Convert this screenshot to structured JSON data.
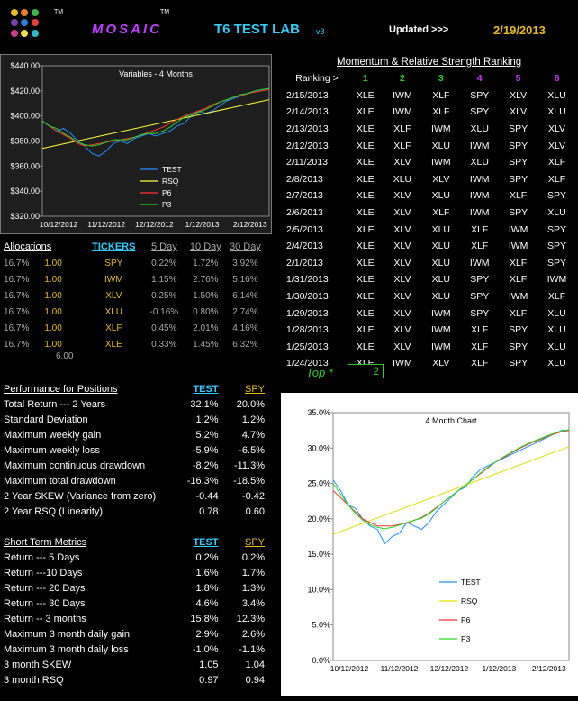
{
  "header": {
    "tm1": "TM",
    "brand": "MOSAIC",
    "tm2": "TM",
    "title": "T6 TEST LAB",
    "version": "v3",
    "updated_label": "Updated >>>",
    "updated_date": "2/19/2013",
    "logo_dots": [
      "#e8b923",
      "#e87f23",
      "#3fb44a",
      "#7a3fb4",
      "#2a7fd4",
      "#e83b3b",
      "#d43a8c",
      "#f0e040",
      "#2bb8c4"
    ]
  },
  "colors": {
    "green": "#2ecc2e",
    "gold": "#e8b923",
    "blue": "#1e90ff",
    "test": "#1e90ff",
    "rsq": "#ffff33",
    "p6": "#ff3030",
    "p3": "#22dd22"
  },
  "ranking": {
    "title": "Momentum & Relative Strength Ranking",
    "label": "Ranking >",
    "cols": [
      "1",
      "2",
      "3",
      "4",
      "5",
      "6"
    ],
    "rows": [
      {
        "date": "2/15/2013",
        "r": [
          "XLE",
          "IWM",
          "XLF",
          "SPY",
          "XLV",
          "XLU"
        ]
      },
      {
        "date": "2/14/2013",
        "r": [
          "XLE",
          "IWM",
          "XLF",
          "SPY",
          "XLV",
          "XLU"
        ]
      },
      {
        "date": "2/13/2013",
        "r": [
          "XLE",
          "XLF",
          "IWM",
          "XLU",
          "SPY",
          "XLV"
        ]
      },
      {
        "date": "2/12/2013",
        "r": [
          "XLE",
          "XLF",
          "XLU",
          "IWM",
          "SPY",
          "XLV"
        ]
      },
      {
        "date": "2/11/2013",
        "r": [
          "XLE",
          "XLV",
          "IWM",
          "XLU",
          "SPY",
          "XLF"
        ]
      },
      {
        "date": "2/8/2013",
        "r": [
          "XLE",
          "XLU",
          "XLV",
          "IWM",
          "SPY",
          "XLF"
        ]
      },
      {
        "date": "2/7/2013",
        "r": [
          "XLE",
          "XLV",
          "XLU",
          "IWM",
          "XLF",
          "SPY"
        ]
      },
      {
        "date": "2/6/2013",
        "r": [
          "XLE",
          "XLV",
          "XLF",
          "IWM",
          "SPY",
          "XLU"
        ]
      },
      {
        "date": "2/5/2013",
        "r": [
          "XLE",
          "XLV",
          "XLU",
          "XLF",
          "IWM",
          "SPY"
        ]
      },
      {
        "date": "2/4/2013",
        "r": [
          "XLE",
          "XLV",
          "XLU",
          "XLF",
          "IWM",
          "SPY"
        ]
      },
      {
        "date": "2/1/2013",
        "r": [
          "XLE",
          "XLV",
          "XLU",
          "IWM",
          "XLF",
          "SPY"
        ]
      },
      {
        "date": "1/31/2013",
        "r": [
          "XLE",
          "XLV",
          "XLU",
          "SPY",
          "XLF",
          "IWM"
        ]
      },
      {
        "date": "1/30/2013",
        "r": [
          "XLE",
          "XLV",
          "XLU",
          "SPY",
          "IWM",
          "XLF"
        ]
      },
      {
        "date": "1/29/2013",
        "r": [
          "XLE",
          "XLV",
          "IWM",
          "SPY",
          "XLF",
          "XLU"
        ]
      },
      {
        "date": "1/28/2013",
        "r": [
          "XLE",
          "XLV",
          "IWM",
          "XLF",
          "SPY",
          "XLU"
        ]
      },
      {
        "date": "1/25/2013",
        "r": [
          "XLE",
          "XLV",
          "IWM",
          "XLF",
          "SPY",
          "XLU"
        ]
      },
      {
        "date": "1/24/2013",
        "r": [
          "XLE",
          "IWM",
          "XLV",
          "XLF",
          "SPY",
          "XLU"
        ]
      }
    ]
  },
  "top": {
    "label": "Top *",
    "value": "2"
  },
  "allocations": {
    "headers": [
      "Allocations",
      "TICKERS",
      "5 Day",
      "10 Day",
      "30 Day"
    ],
    "rows": [
      {
        "pct": "16.7%",
        "w": "1.00",
        "t": "SPY",
        "d5": "0.22%",
        "d10": "1.72%",
        "d30": "3.92%"
      },
      {
        "pct": "16.7%",
        "w": "1.00",
        "t": "IWM",
        "d5": "1.15%",
        "d10": "2.76%",
        "d30": "5.16%"
      },
      {
        "pct": "16.7%",
        "w": "1.00",
        "t": "XLV",
        "d5": "0.25%",
        "d10": "1.50%",
        "d30": "6.14%"
      },
      {
        "pct": "16.7%",
        "w": "1.00",
        "t": "XLU",
        "d5": "-0.16%",
        "d10": "0.80%",
        "d30": "2.74%"
      },
      {
        "pct": "16.7%",
        "w": "1.00",
        "t": "XLF",
        "d5": "0.45%",
        "d10": "2.01%",
        "d30": "4.16%"
      },
      {
        "pct": "16.7%",
        "w": "1.00",
        "t": "XLE",
        "d5": "0.33%",
        "d10": "1.45%",
        "d30": "6.32%"
      }
    ],
    "total": "6.00"
  },
  "performance": {
    "title": "Performance for Positions",
    "col1": "TEST",
    "col2": "SPY",
    "rows": [
      {
        "k": "Total Return --- 2 Years",
        "a": "32.1%",
        "b": "20.0%"
      },
      {
        "k": "Standard Deviation",
        "a": "1.2%",
        "b": "1.2%"
      },
      {
        "k": "Maximum weekly gain",
        "a": "5.2%",
        "b": "4.7%"
      },
      {
        "k": "Maximum weekly loss",
        "a": "-5.9%",
        "b": "-6.5%"
      },
      {
        "k": "Maximum continuous drawdown",
        "a": "-8.2%",
        "b": "-11.3%"
      },
      {
        "k": "Maximum total drawdown",
        "a": "-16.3%",
        "b": "-18.5%"
      },
      {
        "k": "2 Year SKEW  (Variance from zero)",
        "a": "-0.44",
        "b": "-0.42"
      },
      {
        "k": "2 Year RSQ  (Linearity)",
        "a": "0.78",
        "b": "0.60"
      }
    ]
  },
  "short_term": {
    "title": "Short Term Metrics",
    "col1": "TEST",
    "col2": "SPY",
    "rows": [
      {
        "k": "Return --- 5 Days",
        "a": "0.2%",
        "b": "0.2%"
      },
      {
        "k": "Return ---10 Days",
        "a": "1.6%",
        "b": "1.7%"
      },
      {
        "k": "Return --- 20 Days",
        "a": "1.8%",
        "b": "1.3%"
      },
      {
        "k": "Return --- 30 Days",
        "a": "4.6%",
        "b": "3.4%"
      },
      {
        "k": "Return -- 3 months",
        "a": "15.8%",
        "b": "12.3%"
      },
      {
        "k": "Maximum 3 month daily gain",
        "a": "2.9%",
        "b": "2.6%"
      },
      {
        "k": "Maximum 3 month daily loss",
        "a": "-1.0%",
        "b": "-1.1%"
      },
      {
        "k": "3 month SKEW",
        "a": "1.05",
        "b": "1.04"
      },
      {
        "k": "3 month RSQ",
        "a": "0.97",
        "b": "0.94"
      }
    ]
  },
  "chart_data": [
    {
      "type": "line",
      "title": "Variables - 4 Months",
      "ylim": [
        320,
        440
      ],
      "yticks": [
        "$320.00",
        "$340.00",
        "$360.00",
        "$380.00",
        "$400.00",
        "$420.00",
        "$440.00"
      ],
      "xticks": [
        "10/12/2012",
        "11/12/2012",
        "12/12/2012",
        "1/12/2013",
        "2/12/2013"
      ],
      "grid": false,
      "legend": "bottom-center",
      "series": [
        {
          "name": "TEST",
          "values": [
            396,
            392,
            388,
            390,
            386,
            380,
            376,
            370,
            368,
            372,
            378,
            380,
            378,
            382,
            384,
            386,
            384,
            386,
            388,
            392,
            394,
            400,
            404,
            402,
            404,
            408,
            412,
            414,
            416,
            418,
            420,
            421,
            422
          ]
        },
        {
          "name": "RSQ",
          "values": [
            374,
            413
          ]
        },
        {
          "name": "P6",
          "values": [
            396,
            392,
            388,
            385,
            382,
            378,
            376,
            377,
            378,
            379,
            380,
            381,
            382,
            383,
            385,
            387,
            389,
            391,
            394,
            397,
            400,
            402,
            404,
            406,
            409,
            411,
            413,
            415,
            416,
            418,
            419,
            420,
            421
          ]
        },
        {
          "name": "P3",
          "values": [
            396,
            392,
            390,
            386,
            383,
            379,
            377,
            376,
            377,
            379,
            381,
            381,
            381,
            383,
            385,
            386,
            386,
            388,
            391,
            395,
            399,
            401,
            403,
            405,
            408,
            411,
            413,
            415,
            417,
            418,
            420,
            421,
            422
          ]
        }
      ]
    },
    {
      "type": "line",
      "title": "4 Month Chart",
      "ylim": [
        0,
        35
      ],
      "yticks": [
        "0.0%",
        "5.0%",
        "10.0%",
        "15.0%",
        "20.0%",
        "25.0%",
        "30.0%",
        "35.0%"
      ],
      "xticks": [
        "10/12/2012",
        "11/12/2012",
        "12/12/2012",
        "1/12/2013",
        "2/12/2013"
      ],
      "grid": false,
      "legend": "bottom-center",
      "series": [
        {
          "name": "TEST",
          "values": [
            25.5,
            24,
            22,
            21.5,
            20,
            19,
            18.5,
            16.5,
            17.5,
            18,
            19.5,
            19,
            18.5,
            19.5,
            21,
            22,
            23,
            24,
            24.5,
            26,
            27,
            27.5,
            28,
            28.5,
            29,
            29.5,
            30,
            30.5,
            31,
            31.5,
            32,
            32.5,
            32.5
          ]
        },
        {
          "name": "RSQ",
          "values": [
            17.8,
            30.2
          ]
        },
        {
          "name": "P6",
          "values": [
            24,
            23,
            22,
            21,
            20,
            19.5,
            19,
            19,
            19,
            19.2,
            19.4,
            19.8,
            20.2,
            20.8,
            21.6,
            22.4,
            23.2,
            24,
            24.8,
            25.6,
            26.4,
            27.2,
            28,
            28.6,
            29.2,
            29.8,
            30.3,
            30.8,
            31.2,
            31.6,
            32,
            32.3,
            32.5
          ]
        },
        {
          "name": "P3",
          "values": [
            25,
            23.5,
            22,
            20.8,
            19.8,
            19.2,
            18.8,
            18.6,
            18.8,
            19.1,
            19.5,
            19.8,
            20.1,
            20.7,
            21.5,
            22.4,
            23.2,
            24,
            24.8,
            25.6,
            26.5,
            27.3,
            28,
            28.7,
            29.3,
            29.9,
            30.4,
            30.9,
            31.3,
            31.7,
            32.1,
            32.4,
            32.6
          ]
        }
      ]
    }
  ]
}
